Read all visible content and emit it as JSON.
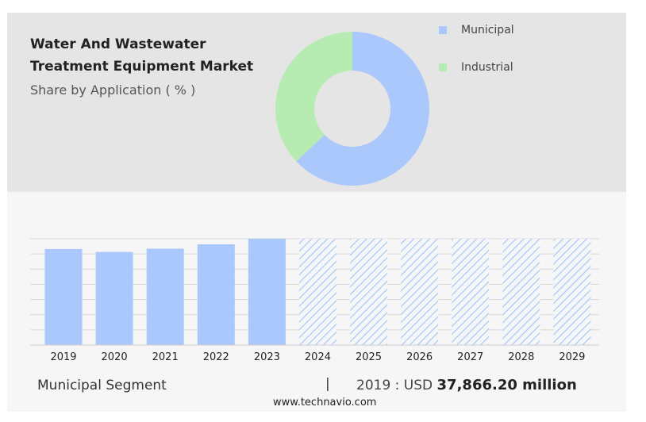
{
  "header": {
    "title_line1": "Water And Wastewater",
    "title_line2": "Treatment Equipment Market",
    "subtitle": "Share by Application ( % )"
  },
  "legend": [
    {
      "label": "Municipal",
      "color": "#aac8fb"
    },
    {
      "label": "Industrial",
      "color": "#b6ecb2"
    }
  ],
  "footer": {
    "segment": "Municipal Segment",
    "separator": "|",
    "value_prefix": "2019 : USD",
    "value_bold": "37,866.20 million"
  },
  "source": "www.technavio.com",
  "colors": {
    "municipal": "#aac8fb",
    "industrial": "#b6ecb2",
    "forecast_hatch": "#aac8fb"
  },
  "chart_data": [
    {
      "type": "pie",
      "variant": "donut",
      "categories": [
        "Municipal",
        "Industrial"
      ],
      "values": [
        63,
        37
      ]
    },
    {
      "type": "bar",
      "categories": [
        "2019",
        "2020",
        "2021",
        "2022",
        "2023",
        "2024",
        "2025",
        "2026",
        "2027",
        "2028",
        "2029"
      ],
      "values": [
        37866.2,
        36700,
        38000,
        39700,
        41900,
        null,
        null,
        null,
        null,
        null,
        null
      ],
      "forecast": [
        false,
        false,
        false,
        false,
        false,
        true,
        true,
        true,
        true,
        true,
        true
      ],
      "grid": true
    }
  ]
}
